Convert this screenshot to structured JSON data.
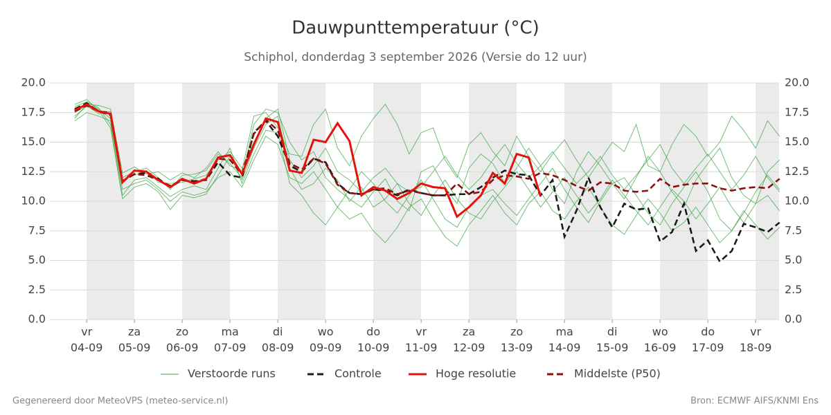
{
  "chart_data": {
    "type": "line",
    "title": "Dauwpunttemperatuur (°C)",
    "subtitle": "Schiphol, donderdag  3 september 2026 (Versie do 12 uur)",
    "footer_left": "Gegenereerd door MeteoVPS (meteo-service.nl)",
    "footer_right": "Bron: ECMWF AIFS/KNMI Ens",
    "grid": true,
    "day_shading": true,
    "shade_color": "#ebebeb",
    "xlim": [
      -0.77,
      14.49
    ],
    "xticks": [
      {
        "value": 0,
        "label": "vr 04-09"
      },
      {
        "value": 1,
        "label": "za 05-09"
      },
      {
        "value": 2,
        "label": "zo 06-09"
      },
      {
        "value": 3,
        "label": "ma 07-09"
      },
      {
        "value": 4,
        "label": "di 08-09"
      },
      {
        "value": 5,
        "label": "wo 09-09"
      },
      {
        "value": 6,
        "label": "do 10-09"
      },
      {
        "value": 7,
        "label": "vr 11-09"
      },
      {
        "value": 8,
        "label": "za 12-09"
      },
      {
        "value": 9,
        "label": "zo 13-09"
      },
      {
        "value": 10,
        "label": "ma 14-09"
      },
      {
        "value": 11,
        "label": "di 15-09"
      },
      {
        "value": 12,
        "label": "wo 16-09"
      },
      {
        "value": 13,
        "label": "do 17-09"
      },
      {
        "value": 14,
        "label": "vr 18-09"
      }
    ],
    "ylim": [
      0,
      20
    ],
    "yticks": [
      {
        "value": 0,
        "label": "0.0"
      },
      {
        "value": 2.5,
        "label": "2.5"
      },
      {
        "value": 5,
        "label": "5.0"
      },
      {
        "value": 7.5,
        "label": "7.5"
      },
      {
        "value": 10,
        "label": "10.0"
      },
      {
        "value": 12.5,
        "label": "12.5"
      },
      {
        "value": 15,
        "label": "15.0"
      },
      {
        "value": 17.5,
        "label": "17.5"
      },
      {
        "value": 20,
        "label": "20.0"
      }
    ],
    "x": [
      -0.25,
      0,
      0.25,
      0.5,
      0.75,
      1,
      1.25,
      1.5,
      1.75,
      2,
      2.25,
      2.5,
      2.75,
      3,
      3.25,
      3.5,
      3.75,
      4,
      4.25,
      4.5,
      4.75,
      5,
      5.25,
      5.5,
      5.75,
      6,
      6.25,
      6.5,
      6.75,
      7,
      7.25,
      7.5,
      7.75,
      8,
      8.25,
      8.5,
      8.75,
      9,
      9.25,
      9.5,
      9.75,
      10,
      10.25,
      10.5,
      10.75,
      11,
      11.25,
      11.5,
      11.75,
      12,
      12.25,
      12.5,
      12.75,
      13,
      13.25,
      13.5,
      13.75,
      14,
      14.25,
      14.5
    ],
    "ensemble": {
      "name": "Verstoorde runs",
      "color": "#3da843",
      "members": [
        [
          17.2,
          18.0,
          17.8,
          17.0,
          12.0,
          12.5,
          12.8,
          12.0,
          11.0,
          12.2,
          12.3,
          12.6,
          14.0,
          13.2,
          12.0,
          16.5,
          17.8,
          17.5,
          15.0,
          13.5,
          14.2,
          12.0,
          11.0,
          10.2,
          9.5,
          10.8,
          11.9,
          10.0,
          9.2,
          12.5,
          13.0,
          11.2,
          9.8,
          12.8,
          14.0,
          13.2,
          11.5,
          12.8,
          14.5,
          13.0,
          11.0,
          9.8,
          12.5,
          14.2,
          13.0,
          11.5,
          10.2,
          12.0,
          13.8,
          12.5,
          10.8,
          9.5,
          11.8,
          13.2,
          14.5,
          12.0,
          10.5,
          9.8,
          12.5,
          13.5
        ],
        [
          18.0,
          18.4,
          17.9,
          16.5,
          10.5,
          11.8,
          12.0,
          11.2,
          10.4,
          11.0,
          11.3,
          11.0,
          12.8,
          14.5,
          11.5,
          14.0,
          16.0,
          15.8,
          11.5,
          10.5,
          9.0,
          8.0,
          9.5,
          11.0,
          12.5,
          11.5,
          10.0,
          9.0,
          10.5,
          11.8,
          10.2,
          8.5,
          7.8,
          9.5,
          10.5,
          11.0,
          9.8,
          8.8,
          10.2,
          11.5,
          12.8,
          11.0,
          9.5,
          8.2,
          10.0,
          11.5,
          12.0,
          10.5,
          9.0,
          8.0,
          9.8,
          11.2,
          12.5,
          10.8,
          8.5,
          7.5,
          9.0,
          10.8,
          12.2,
          11.0
        ],
        [
          17.0,
          18.2,
          18.1,
          17.8,
          12.4,
          12.9,
          12.3,
          12.5,
          11.8,
          12.4,
          12.0,
          12.8,
          14.2,
          13.0,
          12.6,
          17.2,
          17.5,
          16.2,
          14.0,
          13.8,
          16.5,
          17.8,
          14.5,
          13.0,
          15.5,
          17.0,
          18.2,
          16.5,
          14.0,
          15.8,
          16.2,
          13.5,
          12.0,
          14.8,
          15.8,
          14.2,
          13.0,
          15.5,
          13.8,
          12.5,
          14.0,
          15.2,
          13.5,
          12.0,
          13.5,
          15.0,
          14.2,
          16.5,
          13.0,
          12.5,
          14.8,
          16.5,
          15.5,
          13.8,
          15.0,
          17.2,
          16.0,
          14.5,
          16.8,
          15.5
        ],
        [
          16.8,
          17.5,
          17.2,
          16.8,
          11.0,
          11.5,
          11.8,
          11.0,
          10.0,
          10.8,
          10.5,
          10.8,
          12.0,
          12.5,
          11.2,
          13.5,
          15.5,
          14.8,
          12.0,
          11.5,
          12.5,
          11.0,
          9.5,
          8.5,
          9.0,
          7.5,
          6.5,
          7.8,
          9.5,
          10.2,
          8.5,
          7.0,
          6.2,
          8.0,
          9.2,
          10.5,
          9.0,
          8.0,
          9.8,
          10.8,
          9.2,
          8.5,
          10.0,
          11.2,
          9.5,
          8.0,
          7.2,
          8.8,
          10.2,
          9.0,
          7.5,
          8.2,
          9.5,
          8.0,
          6.5,
          7.5,
          9.2,
          8.0,
          6.8,
          7.8
        ],
        [
          17.5,
          18.1,
          17.4,
          17.6,
          11.8,
          12.2,
          12.6,
          11.6,
          11.5,
          11.6,
          11.9,
          12.2,
          13.5,
          14.2,
          12.8,
          15.0,
          17.0,
          17.8,
          13.5,
          12.0,
          13.0,
          14.5,
          12.5,
          11.8,
          10.8,
          12.0,
          12.8,
          11.5,
          10.8,
          11.2,
          12.5,
          13.8,
          12.2,
          11.0,
          12.0,
          13.5,
          14.8,
          13.2,
          12.0,
          13.0,
          14.2,
          12.8,
          11.5,
          12.5,
          13.8,
          12.2,
          11.0,
          12.2,
          13.5,
          14.8,
          12.8,
          11.5,
          12.8,
          14.0,
          12.5,
          11.0,
          12.2,
          13.8,
          12.0,
          10.8
        ],
        [
          18.2,
          18.6,
          17.7,
          16.2,
          10.2,
          11.2,
          11.5,
          10.8,
          9.3,
          10.5,
          10.3,
          10.6,
          12.2,
          13.8,
          11.8,
          14.5,
          16.5,
          17.2,
          12.8,
          11.0,
          11.5,
          12.8,
          11.8,
          10.0,
          11.2,
          9.5,
          10.2,
          11.5,
          9.8,
          8.8,
          10.5,
          11.8,
          10.2,
          9.0,
          8.5,
          10.0,
          11.2,
          12.5,
          11.0,
          9.5,
          10.8,
          12.0,
          10.5,
          9.0,
          10.2,
          11.8,
          10.5,
          9.2,
          8.0,
          9.5,
          11.0,
          10.0,
          8.5,
          9.8,
          11.2,
          9.5,
          8.2,
          9.8,
          10.5,
          9.2
        ]
      ]
    },
    "series": [
      {
        "name": "Controle",
        "color": "#1a1a1a",
        "dashed": true,
        "values": [
          17.8,
          18.3,
          17.6,
          17.3,
          11.7,
          12.3,
          12.4,
          11.9,
          11.2,
          11.8,
          11.7,
          11.8,
          13.3,
          12.2,
          12.0,
          15.8,
          16.8,
          15.5,
          13.0,
          12.5,
          13.6,
          13.3,
          11.5,
          10.7,
          10.6,
          11.0,
          10.9,
          10.5,
          11.0,
          10.7,
          10.5,
          10.5,
          10.6,
          10.6,
          11.2,
          12.0,
          12.6,
          12.3,
          12.2,
          10.5,
          11.8,
          7.0,
          9.2,
          12.0,
          9.5,
          7.8,
          9.8,
          9.3,
          9.4,
          6.6,
          7.4,
          9.8,
          5.8,
          6.7,
          4.9,
          5.8,
          8.1,
          7.8,
          7.4,
          8.2
        ]
      },
      {
        "name": "Hoge resolutie",
        "color": "#e3120b",
        "dashed": false,
        "values": [
          17.7,
          18.2,
          17.6,
          17.4,
          11.6,
          12.6,
          12.5,
          11.8,
          11.2,
          11.9,
          11.5,
          11.9,
          13.7,
          13.9,
          12.3,
          14.8,
          17.0,
          16.7,
          12.6,
          12.4,
          15.2,
          15.0,
          16.6,
          15.1,
          10.5,
          11.2,
          10.9,
          10.2,
          10.7,
          11.5,
          11.2,
          11.1,
          8.7,
          9.5,
          10.5,
          12.4,
          11.5,
          14.0,
          13.7,
          10.4,
          null,
          null,
          null,
          null,
          null,
          null,
          null,
          null,
          null,
          null,
          null,
          null,
          null,
          null,
          null,
          null,
          null,
          null,
          null,
          null
        ]
      },
      {
        "name": "Middelste (P50)",
        "color": "#8b1010",
        "dashed": true,
        "values": [
          17.6,
          18.1,
          17.6,
          17.5,
          11.7,
          12.3,
          12.2,
          11.8,
          11.3,
          11.8,
          11.6,
          11.9,
          13.6,
          13.5,
          12.3,
          15.7,
          16.9,
          16.0,
          13.2,
          12.7,
          13.6,
          13.2,
          11.4,
          10.7,
          10.6,
          11.0,
          11.1,
          10.6,
          10.9,
          10.7,
          10.5,
          10.5,
          11.5,
          10.6,
          10.8,
          11.8,
          12.2,
          12.1,
          11.9,
          12.4,
          12.2,
          11.8,
          11.3,
          10.9,
          11.6,
          11.5,
          10.9,
          10.8,
          10.9,
          11.9,
          11.2,
          11.4,
          11.5,
          11.5,
          11.1,
          10.9,
          11.1,
          11.2,
          11.1,
          11.9
        ]
      }
    ]
  }
}
